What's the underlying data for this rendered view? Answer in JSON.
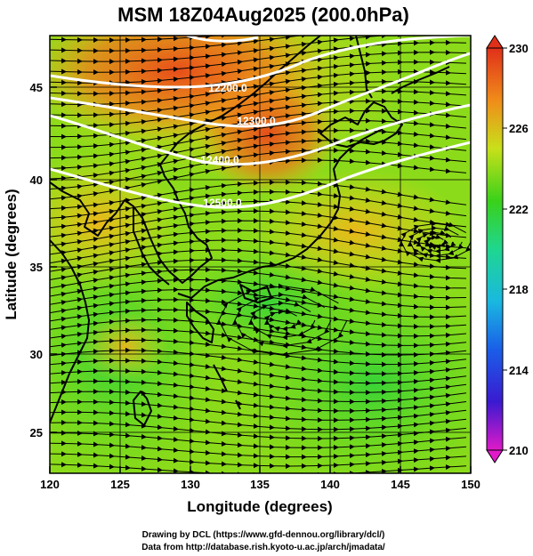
{
  "title": "MSM 18Z04Aug2025 (200.0hPa)",
  "x_axis": {
    "label": "Longitude (degrees)",
    "ticks": [
      "120",
      "125",
      "130",
      "135",
      "140",
      "145",
      "150"
    ],
    "range": [
      120,
      150
    ]
  },
  "y_axis": {
    "label": "Latitude  (degrees)",
    "ticks": [
      "25",
      "30",
      "35",
      "40",
      "45"
    ],
    "range": [
      22.5,
      47.5
    ]
  },
  "colorbar": {
    "ticks": [
      "230",
      "226",
      "222",
      "218",
      "214",
      "210"
    ],
    "range": [
      210,
      230
    ],
    "colors": [
      "#e01ac8",
      "#2a1acf",
      "#1a9ee8",
      "#1fd68f",
      "#33d11a",
      "#b8e01a",
      "#f7e21a",
      "#f0831a",
      "#e0341a"
    ]
  },
  "contours": [
    {
      "label": "12200.0"
    },
    {
      "label": "12300.0"
    },
    {
      "label": "12400.0"
    },
    {
      "label": "12500.0"
    }
  ],
  "credits": {
    "line1": "Drawing by DCL (https://www.gfd-dennou.org/library/dcl/)",
    "line2": "Data from http://database.rish.kyoto-u.ac.jp/arch/jmadata/"
  }
}
